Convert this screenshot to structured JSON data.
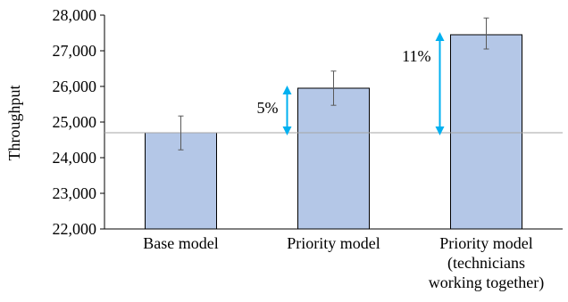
{
  "chart_data": {
    "type": "bar",
    "title": "",
    "xlabel": "",
    "ylabel": "Throughput",
    "ylim": [
      22000,
      28000
    ],
    "yticks": [
      22000,
      23000,
      24000,
      25000,
      26000,
      27000,
      28000
    ],
    "ytick_labels": [
      "22,000",
      "23,000",
      "24,000",
      "25,000",
      "26,000",
      "27,000",
      "28,000"
    ],
    "grid": false,
    "categories": [
      [
        "Base model"
      ],
      [
        "Priority model"
      ],
      [
        "Priority model",
        "(technicians",
        "working together)"
      ]
    ],
    "values": [
      24700,
      25950,
      27450
    ],
    "errors": [
      {
        "low": 24220,
        "high": 25170
      },
      {
        "low": 25470,
        "high": 26430
      },
      {
        "low": 27050,
        "high": 27920
      }
    ],
    "baseline": 24700,
    "annotations": [
      {
        "label": "5%",
        "bar_index": 1,
        "from": 24700,
        "to": 25950
      },
      {
        "label": "11%",
        "bar_index": 2,
        "from": 24700,
        "to": 27450
      }
    ],
    "colors": {
      "bar_fill": "#b4c7e7",
      "bar_stroke": "#000000",
      "error_bar": "#595959",
      "baseline": "#a6a6a6",
      "arrow": "#00b0f0",
      "axis": "#000000"
    }
  }
}
